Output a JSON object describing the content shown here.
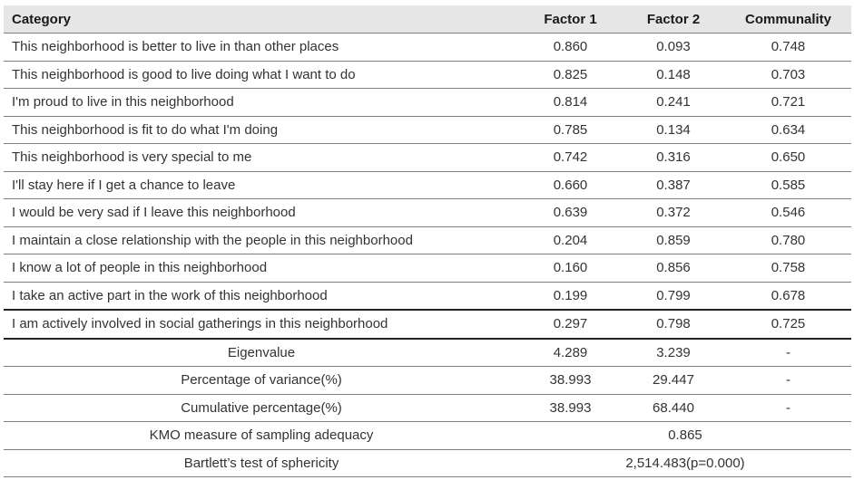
{
  "table": {
    "headers": [
      "Category",
      "Factor 1",
      "Factor 2",
      "Communality"
    ],
    "rows": [
      {
        "label": "This neighborhood is better to live in than other places",
        "f1": "0.860",
        "f2": "0.093",
        "comm": "0.748"
      },
      {
        "label": "This neighborhood is good to live doing what I want to do",
        "f1": "0.825",
        "f2": "0.148",
        "comm": "0.703"
      },
      {
        "label": "I'm proud to live in this neighborhood",
        "f1": "0.814",
        "f2": "0.241",
        "comm": "0.721"
      },
      {
        "label": "This neighborhood is fit to do what I'm doing",
        "f1": "0.785",
        "f2": "0.134",
        "comm": "0.634"
      },
      {
        "label": "This neighborhood is very special to me",
        "f1": "0.742",
        "f2": "0.316",
        "comm": "0.650"
      },
      {
        "label": "I'll stay here if I get a chance to leave",
        "f1": "0.660",
        "f2": "0.387",
        "comm": "0.585"
      },
      {
        "label": "I would be very sad if I leave this neighborhood",
        "f1": "0.639",
        "f2": "0.372",
        "comm": "0.546"
      },
      {
        "label": "I maintain a close relationship with the people in this neighborhood",
        "f1": "0.204",
        "f2": "0.859",
        "comm": "0.780"
      },
      {
        "label": "I know a lot of people in this neighborhood",
        "f1": "0.160",
        "f2": "0.856",
        "comm": "0.758"
      },
      {
        "label": "I take an active part in the work of this neighborhood",
        "f1": "0.199",
        "f2": "0.799",
        "comm": "0.678"
      },
      {
        "label": "I am actively involved in social gatherings in this neighborhood",
        "f1": "0.297",
        "f2": "0.798",
        "comm": "0.725"
      }
    ],
    "stats": [
      {
        "label": "Eigenvalue",
        "f1": "4.289",
        "f2": "3.239",
        "comm": "-"
      },
      {
        "label": "Percentage of variance(%)",
        "f1": "38.993",
        "f2": "29.447",
        "comm": "-"
      },
      {
        "label": "Cumulative percentage(%)",
        "f1": "38.993",
        "f2": "68.440",
        "comm": "-"
      }
    ],
    "kmo": {
      "label": "KMO measure of sampling adequacy",
      "value": "0.865"
    },
    "bartlett": {
      "label": "Bartlett’s test of sphericity",
      "value": "2,514.483(p=0.000)"
    }
  }
}
